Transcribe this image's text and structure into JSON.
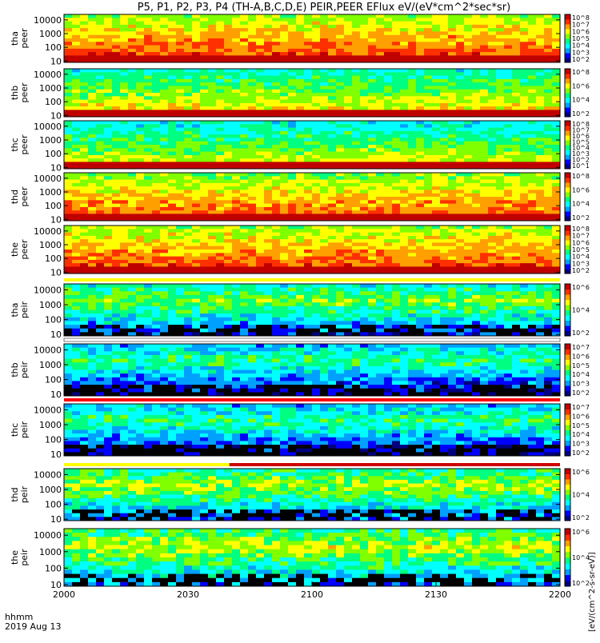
{
  "chart_data": {
    "type": "heatmap",
    "title": "P5, P1, P2, P3, P4 (TH-A,B,C,D,E) PEIR,PEER EFlux eV/(eV*cm^2*sec*sr)",
    "colorbar_label": "[eV/(cm^2-s-sr-eV)]",
    "x_ticks": [
      "2000",
      "2030",
      "2100",
      "2130",
      "2200"
    ],
    "x_tick_minutes": [
      0,
      30,
      60,
      90,
      120
    ],
    "x_range_minutes": [
      0,
      120
    ],
    "x_footer": [
      "hhmm",
      "2019 Aug 13"
    ],
    "y_ticks": [
      "10000",
      "1000",
      "100",
      "10"
    ],
    "y_tick_values": [
      10000,
      1000,
      100,
      10
    ],
    "y_scale": "log",
    "ylim": [
      8,
      25000
    ],
    "panels": [
      {
        "label": [
          "tha",
          "peer"
        ],
        "species": "electron",
        "cb_ticks": [
          "10^8",
          "10^7",
          "10^6",
          "10^5",
          "10^4",
          "10^3",
          "10^2"
        ],
        "level": 0.75,
        "cutoff": "high",
        "flag_bar": "none"
      },
      {
        "label": [
          "thb",
          "peer"
        ],
        "species": "electron",
        "cb_ticks": [
          "10^8",
          "10^6",
          "10^4",
          "10^2"
        ],
        "level": 0.55,
        "cutoff": "high",
        "flag_bar": "none"
      },
      {
        "label": [
          "thc",
          "peer"
        ],
        "species": "electron",
        "cb_ticks": [
          "10^8",
          "10^7",
          "10^6",
          "10^5",
          "10^4",
          "10^3",
          "10^2",
          "10^1"
        ],
        "level": 0.5,
        "cutoff": "high",
        "flag_bar": "none"
      },
      {
        "label": [
          "thd",
          "peer"
        ],
        "species": "electron",
        "cb_ticks": [
          "10^8",
          "10^6",
          "10^4",
          "10^2"
        ],
        "level": 0.72,
        "cutoff": "mid",
        "flag_bar": "none"
      },
      {
        "label": [
          "the",
          "peer"
        ],
        "species": "electron",
        "cb_ticks": [
          "10^8",
          "10^7",
          "10^6",
          "10^5",
          "10^4",
          "10^3",
          "10^2"
        ],
        "level": 0.75,
        "cutoff": "mid",
        "flag_bar": "none"
      },
      {
        "label": [
          "tha",
          "peir"
        ],
        "species": "ion",
        "cb_ticks": [
          "10^6",
          "10^4",
          "10^2"
        ],
        "level": 0.55,
        "cutoff": "low",
        "flag_bar": "yellow"
      },
      {
        "label": [
          "thb",
          "peir"
        ],
        "species": "ion",
        "cb_ticks": [
          "10^7",
          "10^6",
          "10^5",
          "10^4",
          "10^3",
          "10^2"
        ],
        "level": 0.45,
        "cutoff": "low",
        "flag_bar": "white"
      },
      {
        "label": [
          "thc",
          "peir"
        ],
        "species": "ion",
        "cb_ticks": [
          "10^7",
          "10^6",
          "10^5",
          "10^4",
          "10^3",
          "10^2"
        ],
        "level": 0.45,
        "cutoff": "low",
        "flag_bar": "red"
      },
      {
        "label": [
          "thd",
          "peir"
        ],
        "species": "ion",
        "cb_ticks": [
          "10^6",
          "10^4",
          "10^2"
        ],
        "level": 0.6,
        "cutoff": "low",
        "flag_bar": "yellow-red"
      },
      {
        "label": [
          "the",
          "peir"
        ],
        "species": "ion",
        "cb_ticks": [
          "10^6",
          "10^4",
          "10^2"
        ],
        "level": 0.62,
        "cutoff": "low",
        "flag_bar": "none"
      }
    ],
    "colors": [
      "#000080",
      "#0000ff",
      "#00a0ff",
      "#00ffff",
      "#00ff80",
      "#80ff00",
      "#ffff00",
      "#ffa000",
      "#ff3000",
      "#c00000"
    ]
  }
}
